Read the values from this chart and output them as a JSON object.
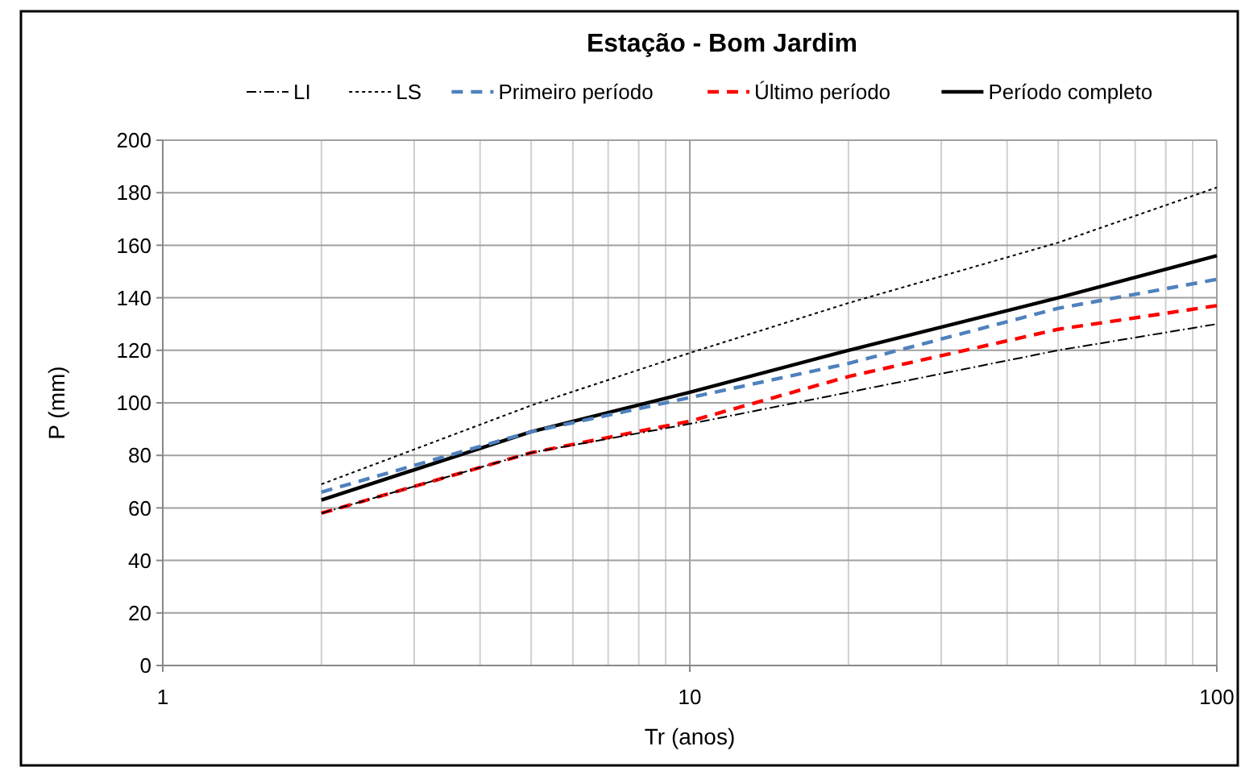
{
  "chart_data": {
    "type": "line",
    "title": "Estação - Bom Jardim",
    "xlabel": "Tr (anos)",
    "ylabel": "P (mm)",
    "log": "x",
    "xlim": [
      1,
      100
    ],
    "xticks": [
      1,
      10,
      100
    ],
    "ylim": [
      0,
      200
    ],
    "yticks": [
      0,
      20,
      40,
      60,
      80,
      100,
      120,
      140,
      160,
      180,
      200
    ],
    "grid": true,
    "legend": "top",
    "marker": "none",
    "x": [
      2,
      5,
      10,
      20,
      50,
      100
    ],
    "series": [
      {
        "name": "LI",
        "color": "#000000",
        "line_style": "dashdot",
        "values": [
          58,
          81,
          92,
          104,
          120,
          130
        ]
      },
      {
        "name": "LS",
        "color": "#000000",
        "line_style": "dotted",
        "values": [
          69,
          99,
          119,
          138,
          161,
          182
        ]
      },
      {
        "name": "Primeiro período",
        "color": "#4f81bd",
        "line_style": "dashed",
        "values": [
          66,
          89,
          102,
          115,
          136,
          147
        ]
      },
      {
        "name": "Último período",
        "color": "#ff0000",
        "line_style": "dashed",
        "values": [
          58,
          81,
          93,
          110,
          128,
          137
        ]
      },
      {
        "name": "Período completo",
        "color": "#000000",
        "line_style": "solid",
        "values": [
          63,
          89,
          104,
          120,
          140,
          156
        ]
      }
    ]
  }
}
